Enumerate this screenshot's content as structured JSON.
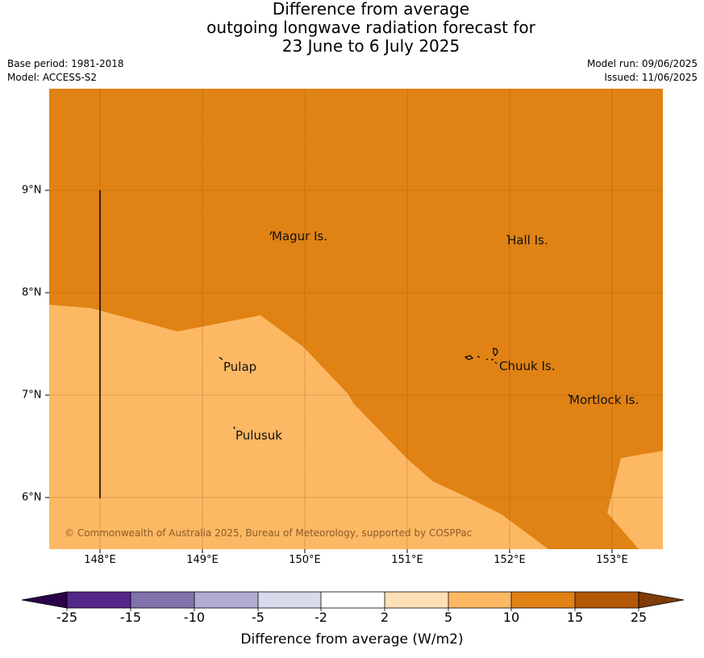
{
  "header": {
    "title_lines": [
      "Difference from average",
      "outgoing longwave radiation forecast for",
      "23 June to 6 July 2025"
    ],
    "base_period": "Base period: 1981-2018",
    "model": "Model: ACCESS-S2",
    "model_run": "Model run: 09/06/2025",
    "issued": "Issued: 11/06/2025"
  },
  "map": {
    "lat_labels": [
      "9°N",
      "8°N",
      "7°N",
      "6°N"
    ],
    "lon_labels": [
      "148°E",
      "149°E",
      "150°E",
      "151°E",
      "152°E",
      "153°E"
    ],
    "places": [
      "Magur Is.",
      "Hall Is.",
      "Pulap",
      "Chuuk Is.",
      "Mortlock Is.",
      "Pulusuk"
    ],
    "copyright": "© Commonwealth of Australia 2025, Bureau of Meteorology, supported by COSPPac",
    "colors": {
      "band_10_15": "#e08214",
      "band_5_10": "#fdb863"
    }
  },
  "colorbar": {
    "label": "Difference from average (W/m2)",
    "ticks": [
      "-25",
      "-15",
      "-10",
      "-5",
      "-2",
      "2",
      "5",
      "10",
      "15",
      "25"
    ],
    "colors": [
      "#2d004b",
      "#542788",
      "#8073ac",
      "#b2abd2",
      "#d8daeb",
      "#ffffff",
      "#fee0b6",
      "#fdb863",
      "#e08214",
      "#b35806",
      "#7f3b08"
    ]
  }
}
